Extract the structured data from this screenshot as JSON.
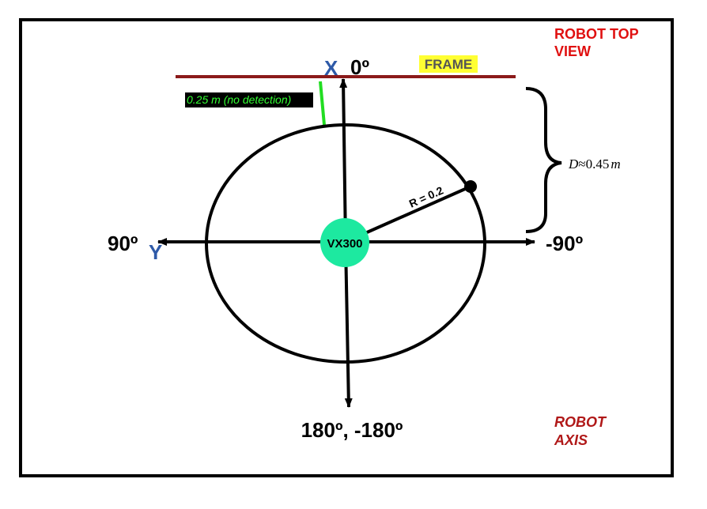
{
  "title": {
    "line1": "ROBOT TOP",
    "line2": "VIEW",
    "color": "#e01010"
  },
  "frame_label": {
    "text": "FRAME",
    "highlight": "#ffff33",
    "color": "#555555"
  },
  "frame_line_color": "#8b1a1a",
  "axis_x": {
    "letter": "X",
    "angle": "0º",
    "letter_color": "#2e5aa8"
  },
  "axis_y": {
    "letter": "Y",
    "angle": "90º",
    "letter_color": "#2e5aa8"
  },
  "angle_right": "-90º",
  "angle_bottom": "180º, -180º",
  "sensor": {
    "label": "0.25 m (no detection)",
    "bg": "#000000",
    "text_color": "#33ff33",
    "line_color": "#22dd22"
  },
  "robot": {
    "label": "VX300",
    "color": "#1de9a0"
  },
  "radius_label": "R = 0.2",
  "distance": {
    "symbol": "D",
    "approx": "≈",
    "value": "0.45",
    "unit": "m"
  },
  "robot_axis": {
    "line1": "ROBOT",
    "line2": "AXIS",
    "color": "#b01818"
  }
}
